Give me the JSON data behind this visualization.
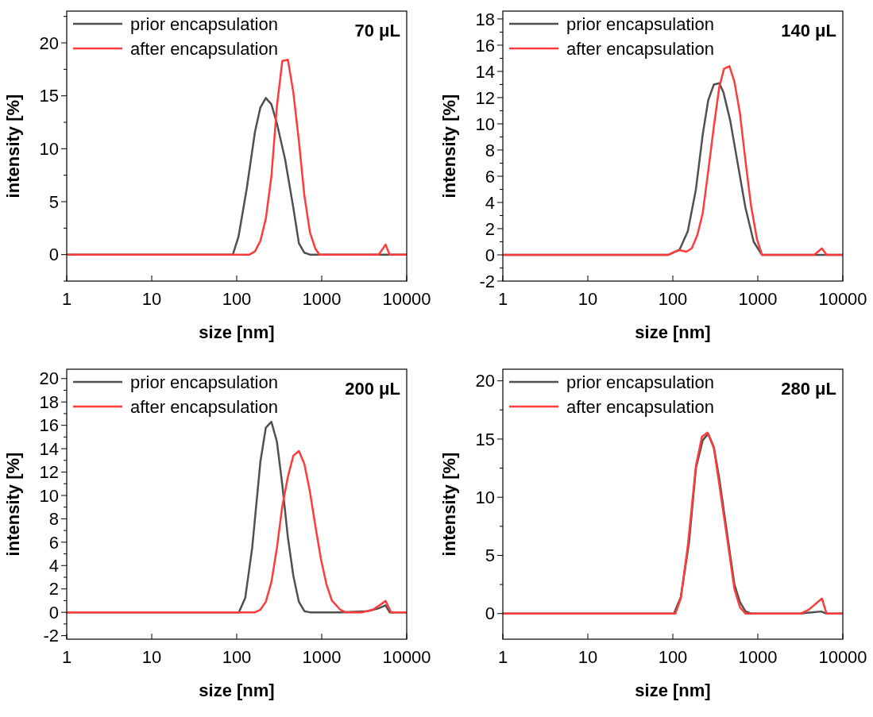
{
  "chart_data": [
    {
      "type": "line",
      "xlabel": "size [nm]",
      "ylabel": "intensity [%]",
      "annotations": [
        "70 μL"
      ],
      "log": "x",
      "xlim": [
        1,
        10000
      ],
      "xticks": [
        1,
        10,
        100,
        1000,
        10000
      ],
      "ylim": [
        -2.5,
        23
      ],
      "yticks": [
        {
          "value": -2.5,
          "label": null
        },
        0,
        {
          "value": 2.5,
          "label": null
        },
        5,
        {
          "value": 7.5,
          "label": null
        },
        10,
        {
          "value": 12.5,
          "label": null
        },
        15,
        {
          "value": 17.5,
          "label": null
        },
        20,
        {
          "value": 22.5,
          "label": null
        }
      ],
      "legend": "top left",
      "line_style": "solid",
      "series": [
        {
          "name": "prior encapsulation",
          "color": "#505050",
          "x": [
            1,
            90,
            105,
            131,
            164,
            190,
            220,
            256,
            297,
            371,
            464,
            539,
            625,
            727,
            10000
          ],
          "values": [
            0,
            0,
            1.7,
            6.2,
            11.6,
            13.9,
            14.8,
            14.2,
            12.4,
            9.0,
            4.4,
            1.07,
            0.18,
            0,
            0
          ]
        },
        {
          "name": "after encapsulation",
          "color": "#ff3b3b",
          "x": [
            1,
            141,
            164,
            190,
            220,
            256,
            297,
            344,
            400,
            464,
            539,
            625,
            727,
            842,
            942,
            4680,
            5640,
            6300,
            10000
          ],
          "values": [
            0,
            0,
            0.3,
            1.3,
            3.4,
            7.4,
            14.0,
            18.3,
            18.4,
            15.3,
            10.7,
            5.6,
            2.1,
            0.56,
            0,
            0,
            0.94,
            0,
            0
          ]
        }
      ]
    },
    {
      "type": "line",
      "xlabel": "size [nm]",
      "ylabel": "intensity [%]",
      "annotations": [
        "140 μL"
      ],
      "log": "x",
      "xlim": [
        1,
        10000
      ],
      "xticks": [
        1,
        10,
        100,
        1000,
        10000
      ],
      "ylim": [
        -2,
        18.6
      ],
      "yticks": [
        -2,
        {
          "value": -1,
          "label": null
        },
        0,
        {
          "value": 1,
          "label": null
        },
        2,
        {
          "value": 3,
          "label": null
        },
        4,
        {
          "value": 5,
          "label": null
        },
        6,
        {
          "value": 7,
          "label": null
        },
        8,
        {
          "value": 9,
          "label": null
        },
        10,
        {
          "value": 11,
          "label": null
        },
        12,
        {
          "value": 13,
          "label": null
        },
        14,
        {
          "value": 15,
          "label": null
        },
        16,
        {
          "value": 17,
          "label": null
        },
        18
      ],
      "legend": "top left",
      "line_style": "solid",
      "series": [
        {
          "name": "prior encapsulation",
          "color": "#505050",
          "x": [
            1,
            89,
            120,
            150,
            187,
            225,
            261,
            304,
            352,
            394,
            475,
            572,
            715,
            894,
            1120,
            10000
          ],
          "values": [
            0,
            0,
            0.4,
            1.8,
            5.0,
            9.2,
            11.8,
            13.0,
            13.1,
            12.4,
            10.2,
            7.2,
            3.6,
            1.0,
            0,
            0
          ]
        },
        {
          "name": "after encapsulation",
          "color": "#ff3b3b",
          "x": [
            1,
            89,
            103,
            120,
            144,
            167,
            194,
            225,
            261,
            304,
            352,
            400,
            464,
            531,
            616,
            715,
            830,
            977,
            1120,
            4600,
            5680,
            6440,
            10000
          ],
          "values": [
            0,
            0,
            0.2,
            0.36,
            0.24,
            0.5,
            1.5,
            3.2,
            6.4,
            9.8,
            12.8,
            14.2,
            14.4,
            13.2,
            10.8,
            7.2,
            3.8,
            1.2,
            0,
            0,
            0.5,
            0,
            0
          ]
        }
      ]
    },
    {
      "type": "line",
      "xlabel": "size [nm]",
      "ylabel": "intensity [%]",
      "annotations": [
        "200 μL"
      ],
      "log": "x",
      "xlim": [
        1,
        10000
      ],
      "xticks": [
        1,
        10,
        100,
        1000,
        10000
      ],
      "ylim": [
        -2.3,
        20.8
      ],
      "yticks": [
        -2,
        {
          "value": -1,
          "label": null
        },
        0,
        {
          "value": 1,
          "label": null
        },
        2,
        {
          "value": 3,
          "label": null
        },
        4,
        {
          "value": 5,
          "label": null
        },
        6,
        {
          "value": 7,
          "label": null
        },
        8,
        {
          "value": 9,
          "label": null
        },
        10,
        {
          "value": 11,
          "label": null
        },
        12,
        {
          "value": 13,
          "label": null
        },
        14,
        {
          "value": 15,
          "label": null
        },
        16,
        {
          "value": 17,
          "label": null
        },
        18,
        {
          "value": 19,
          "label": null
        },
        20
      ],
      "legend": "top left",
      "line_style": "solid",
      "series": [
        {
          "name": "prior encapsulation",
          "color": "#505050",
          "x": [
            1,
            106,
            126,
            152,
            190,
            220,
            256,
            297,
            344,
            400,
            464,
            539,
            625,
            727,
            1650,
            3470,
            4680,
            5640,
            6300,
            10000
          ],
          "values": [
            0,
            0,
            1.24,
            5.5,
            12.9,
            15.8,
            16.3,
            14.6,
            10.9,
            6.4,
            3.1,
            0.9,
            0.1,
            0,
            0,
            0.1,
            0.34,
            0.6,
            0,
            0
          ]
        },
        {
          "name": "after encapsulation",
          "color": "#ff3b3b",
          "x": [
            1,
            164,
            190,
            220,
            256,
            297,
            344,
            400,
            464,
            539,
            625,
            727,
            842,
            977,
            1136,
            1318,
            1650,
            1913,
            2990,
            4030,
            4680,
            5640,
            6540,
            10000
          ],
          "values": [
            0,
            0,
            0.23,
            0.9,
            2.6,
            5.5,
            9.1,
            11.6,
            13.4,
            13.8,
            12.7,
            10.3,
            7.4,
            4.6,
            2.4,
            1.0,
            0.23,
            0,
            0,
            0.23,
            0.56,
            0.97,
            0,
            0
          ]
        }
      ]
    },
    {
      "type": "line",
      "xlabel": "size [nm]",
      "ylabel": "intensity [%]",
      "annotations": [
        "280 μL"
      ],
      "log": "x",
      "xlim": [
        1,
        10000
      ],
      "xticks": [
        1,
        10,
        100,
        1000,
        10000
      ],
      "ylim": [
        -2.2,
        21
      ],
      "yticks": [
        0,
        {
          "value": 2.5,
          "label": null
        },
        5,
        {
          "value": 7.5,
          "label": null
        },
        10,
        {
          "value": 12.5,
          "label": null
        },
        15,
        {
          "value": 17.5,
          "label": null
        },
        20
      ],
      "legend": "top left",
      "line_style": "solid",
      "series": [
        {
          "name": "prior encapsulation",
          "color": "#505050",
          "x": [
            1,
            103,
            124,
            155,
            187,
            225,
            261,
            304,
            352,
            425,
            531,
            616,
            715,
            830,
            3180,
            4280,
            5550,
            6440,
            10000
          ],
          "values": [
            0,
            0,
            1.4,
            6.1,
            12.5,
            14.9,
            15.45,
            14.3,
            11.6,
            7.4,
            2.5,
            1.0,
            0.2,
            0,
            0,
            0.11,
            0.18,
            0,
            0
          ]
        },
        {
          "name": "after encapsulation",
          "color": "#ff3b3b",
          "x": [
            1,
            107,
            124,
            150,
            187,
            220,
            256,
            304,
            352,
            425,
            531,
            616,
            715,
            3180,
            3970,
            5680,
            6440,
            10000
          ],
          "values": [
            0,
            0,
            1.3,
            5.8,
            12.7,
            15.2,
            15.55,
            14.2,
            11.1,
            7.0,
            2.1,
            0.55,
            0,
            0,
            0.33,
            1.3,
            0,
            0
          ]
        }
      ]
    }
  ]
}
